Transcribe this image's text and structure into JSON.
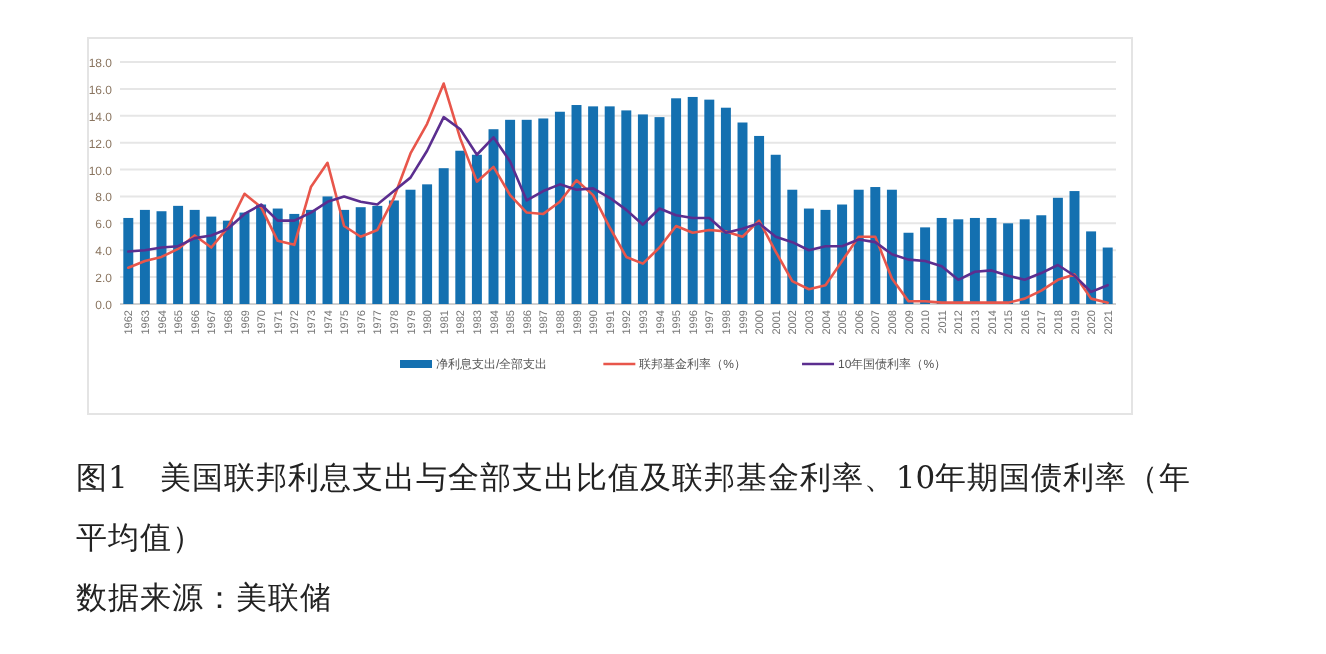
{
  "chart_data": {
    "type": "bar",
    "title": "图1　美国联邦利息支出与全部支出比值及联邦基金利率、10年期国债利率（年平均值）",
    "annotations": [
      "数据来源：美联储"
    ],
    "categories": [
      "1962",
      "1963",
      "1964",
      "1965",
      "1966",
      "1967",
      "1968",
      "1969",
      "1970",
      "1971",
      "1972",
      "1973",
      "1974",
      "1975",
      "1976",
      "1977",
      "1978",
      "1979",
      "1980",
      "1981",
      "1982",
      "1983",
      "1984",
      "1985",
      "1986",
      "1987",
      "1988",
      "1989",
      "1990",
      "1991",
      "1992",
      "1993",
      "1994",
      "1995",
      "1996",
      "1997",
      "1998",
      "1999",
      "2000",
      "2001",
      "2002",
      "2003",
      "2004",
      "2005",
      "2006",
      "2007",
      "2008",
      "2009",
      "2010",
      "2011",
      "2012",
      "2013",
      "2014",
      "2015",
      "2016",
      "2017",
      "2018",
      "2019",
      "2020",
      "2021"
    ],
    "series": [
      {
        "name": "净利息支出/全部支出",
        "color": "#1470b0",
        "values": [
          6.4,
          7.0,
          6.9,
          7.3,
          7.0,
          6.5,
          6.2,
          6.8,
          7.4,
          7.1,
          6.7,
          7.0,
          8.0,
          7.0,
          7.2,
          7.3,
          7.7,
          8.5,
          8.9,
          10.1,
          11.4,
          11.1,
          13.0,
          13.7,
          13.7,
          13.8,
          14.3,
          14.8,
          14.7,
          14.7,
          14.4,
          14.1,
          13.9,
          15.3,
          15.4,
          15.2,
          14.6,
          13.5,
          12.5,
          11.1,
          8.5,
          7.1,
          7.0,
          7.4,
          8.5,
          8.7,
          8.5,
          5.3,
          5.7,
          6.4,
          6.3,
          6.4,
          6.4,
          6.0,
          6.3,
          6.6,
          7.9,
          8.4,
          5.4,
          4.2
        ]
      },
      {
        "name": "联邦基金利率（%）",
        "type": "line",
        "color": "#e8564b",
        "values": [
          2.7,
          3.2,
          3.5,
          4.1,
          5.1,
          4.2,
          5.7,
          8.2,
          7.2,
          4.7,
          4.4,
          8.7,
          10.5,
          5.8,
          5.0,
          5.5,
          7.9,
          11.2,
          13.4,
          16.4,
          12.3,
          9.1,
          10.2,
          8.1,
          6.8,
          6.7,
          7.6,
          9.2,
          8.1,
          5.7,
          3.5,
          3.0,
          4.2,
          5.8,
          5.3,
          5.5,
          5.4,
          5.0,
          6.2,
          3.9,
          1.7,
          1.1,
          1.4,
          3.2,
          5.0,
          5.0,
          1.9,
          0.2,
          0.2,
          0.1,
          0.1,
          0.1,
          0.1,
          0.1,
          0.4,
          1.0,
          1.8,
          2.2,
          0.4,
          0.1
        ]
      },
      {
        "name": "10年国债利率（%）",
        "type": "line",
        "color": "#5b2e8f",
        "values": [
          3.9,
          4.0,
          4.2,
          4.3,
          4.9,
          5.1,
          5.6,
          6.7,
          7.4,
          6.2,
          6.2,
          6.8,
          7.6,
          8.0,
          7.6,
          7.4,
          8.4,
          9.4,
          11.4,
          13.9,
          13.0,
          11.1,
          12.4,
          10.6,
          7.7,
          8.4,
          8.9,
          8.5,
          8.6,
          7.9,
          7.0,
          5.9,
          7.1,
          6.6,
          6.4,
          6.4,
          5.3,
          5.6,
          6.0,
          5.0,
          4.6,
          4.0,
          4.3,
          4.3,
          4.8,
          4.6,
          3.7,
          3.3,
          3.2,
          2.8,
          1.8,
          2.4,
          2.5,
          2.1,
          1.8,
          2.3,
          2.9,
          2.1,
          0.9,
          1.4
        ]
      }
    ],
    "ylim": [
      0,
      18
    ],
    "yticks": [
      {
        "value": 0,
        "label": "0.0"
      },
      {
        "value": 2,
        "label": "2.0"
      },
      {
        "value": 4,
        "label": "4.0"
      },
      {
        "value": 6,
        "label": "6.0"
      },
      {
        "value": 8,
        "label": "8.0"
      },
      {
        "value": 10,
        "label": "10.0"
      },
      {
        "value": 12,
        "label": "12.0"
      },
      {
        "value": 14,
        "label": "14.0"
      },
      {
        "value": 16,
        "label": "16.0"
      },
      {
        "value": 18,
        "label": "18.0"
      }
    ],
    "grid": "y",
    "legend": "bottom"
  }
}
